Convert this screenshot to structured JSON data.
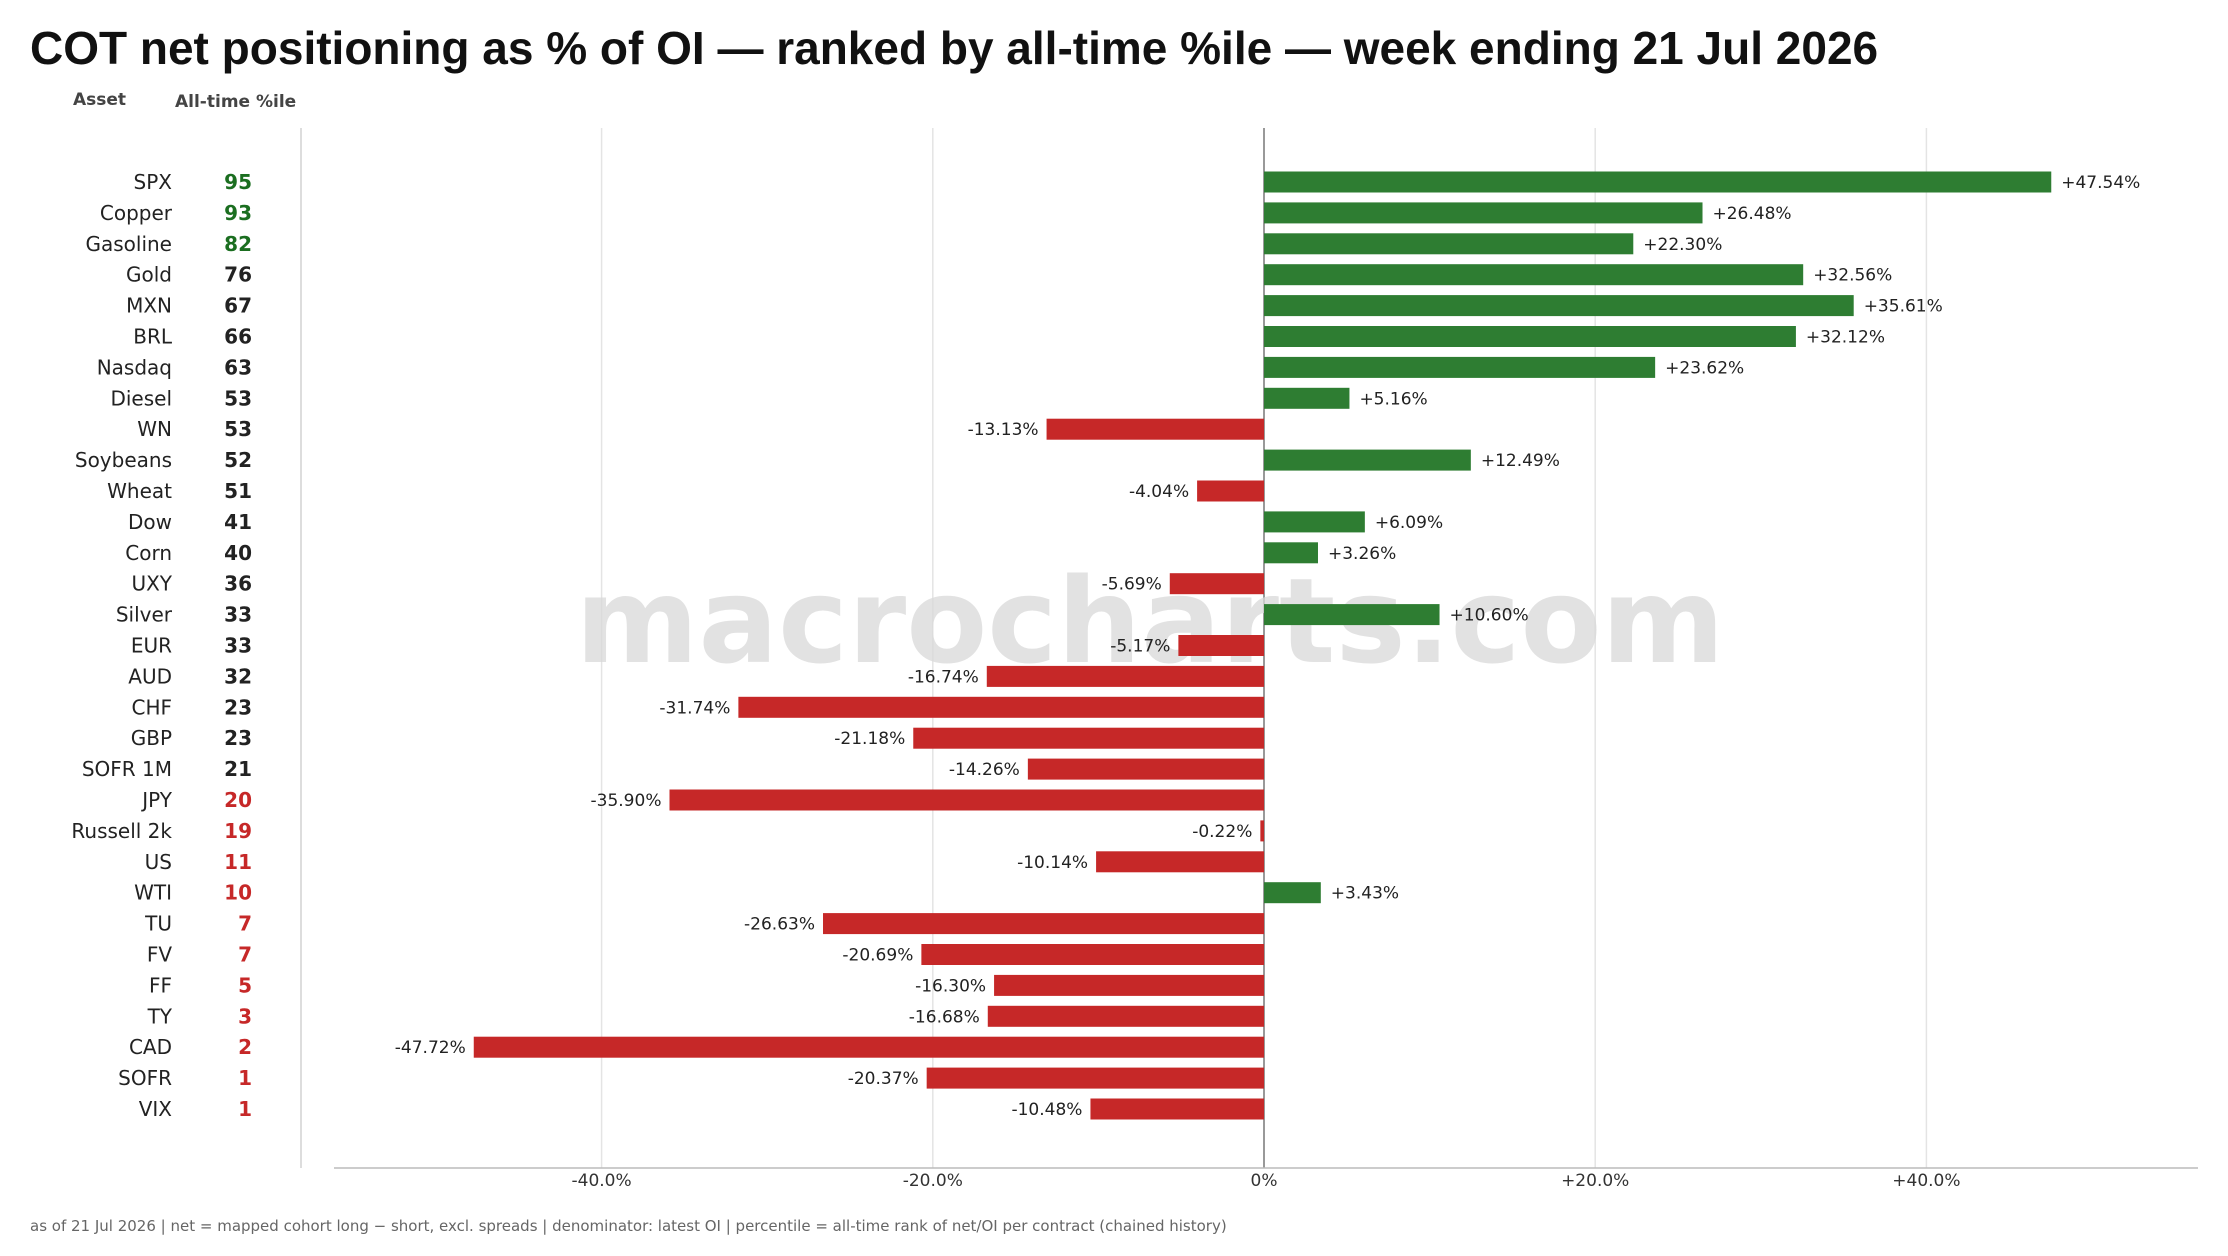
{
  "chart_data": {
    "type": "bar",
    "orientation": "horizontal",
    "title": "COT net positioning as % of OI — ranked by all-time %ile — week ending 21 Jul 2026",
    "column_headers": {
      "asset": "Asset",
      "percentile": "All-time %ile"
    },
    "xlim": [
      -55,
      56
    ],
    "x_ticks": [
      -40,
      -20,
      0,
      20,
      40
    ],
    "x_tick_labels": [
      "-40.0%",
      "-20.0%",
      "0%",
      "+20.0%",
      "+40.0%"
    ],
    "grid": true,
    "colors": {
      "positive": "#2e7d32",
      "negative": "#c62828",
      "percentile_high": "#1b6e20",
      "percentile_mid": "#222222",
      "percentile_low": "#c62828"
    },
    "categories": [
      "SPX",
      "Copper",
      "Gasoline",
      "Gold",
      "MXN",
      "BRL",
      "Nasdaq",
      "Diesel",
      "WN",
      "Soybeans",
      "Wheat",
      "Dow",
      "Corn",
      "UXY",
      "Silver",
      "EUR",
      "AUD",
      "CHF",
      "GBP",
      "SOFR 1M",
      "JPY",
      "Russell 2k",
      "US",
      "WTI",
      "TU",
      "FV",
      "FF",
      "TY",
      "CAD",
      "SOFR",
      "VIX"
    ],
    "values": [
      47.54,
      26.48,
      22.3,
      32.56,
      35.61,
      32.12,
      23.62,
      5.16,
      -13.13,
      12.49,
      -4.04,
      6.09,
      3.26,
      -5.69,
      10.6,
      -5.17,
      -16.74,
      -31.74,
      -21.18,
      -14.26,
      -35.9,
      -0.22,
      -10.14,
      3.43,
      -26.63,
      -20.69,
      -16.3,
      -16.68,
      -47.72,
      -20.37,
      -10.48
    ],
    "value_labels": [
      "+47.54%",
      "+26.48%",
      "+22.30%",
      "+32.56%",
      "+35.61%",
      "+32.12%",
      "+23.62%",
      "+5.16%",
      "-13.13%",
      "+12.49%",
      "-4.04%",
      "+6.09%",
      "+3.26%",
      "-5.69%",
      "+10.60%",
      "-5.17%",
      "-16.74%",
      "-31.74%",
      "-21.18%",
      "-14.26%",
      "-35.90%",
      "-0.22%",
      "-10.14%",
      "+3.43%",
      "-26.63%",
      "-20.69%",
      "-16.30%",
      "-16.68%",
      "-47.72%",
      "-20.37%",
      "-10.48%"
    ],
    "percentiles": [
      95,
      93,
      82,
      76,
      67,
      66,
      63,
      53,
      53,
      52,
      51,
      41,
      40,
      36,
      33,
      33,
      32,
      23,
      23,
      21,
      20,
      19,
      11,
      10,
      7,
      7,
      5,
      3,
      2,
      1,
      1
    ],
    "percentile_tiers": [
      "high",
      "high",
      "high",
      "mid",
      "mid",
      "mid",
      "mid",
      "mid",
      "mid",
      "mid",
      "mid",
      "mid",
      "mid",
      "mid",
      "mid",
      "mid",
      "mid",
      "mid",
      "mid",
      "mid",
      "low",
      "low",
      "low",
      "low",
      "low",
      "low",
      "low",
      "low",
      "low",
      "low",
      "low"
    ]
  },
  "watermark": "macrocharts.com",
  "footer": "as of 21 Jul 2026   |   net = mapped cohort long − short, excl. spreads   |   denominator: latest OI   |   percentile = all-time rank of net/OI per contract (chained history)"
}
